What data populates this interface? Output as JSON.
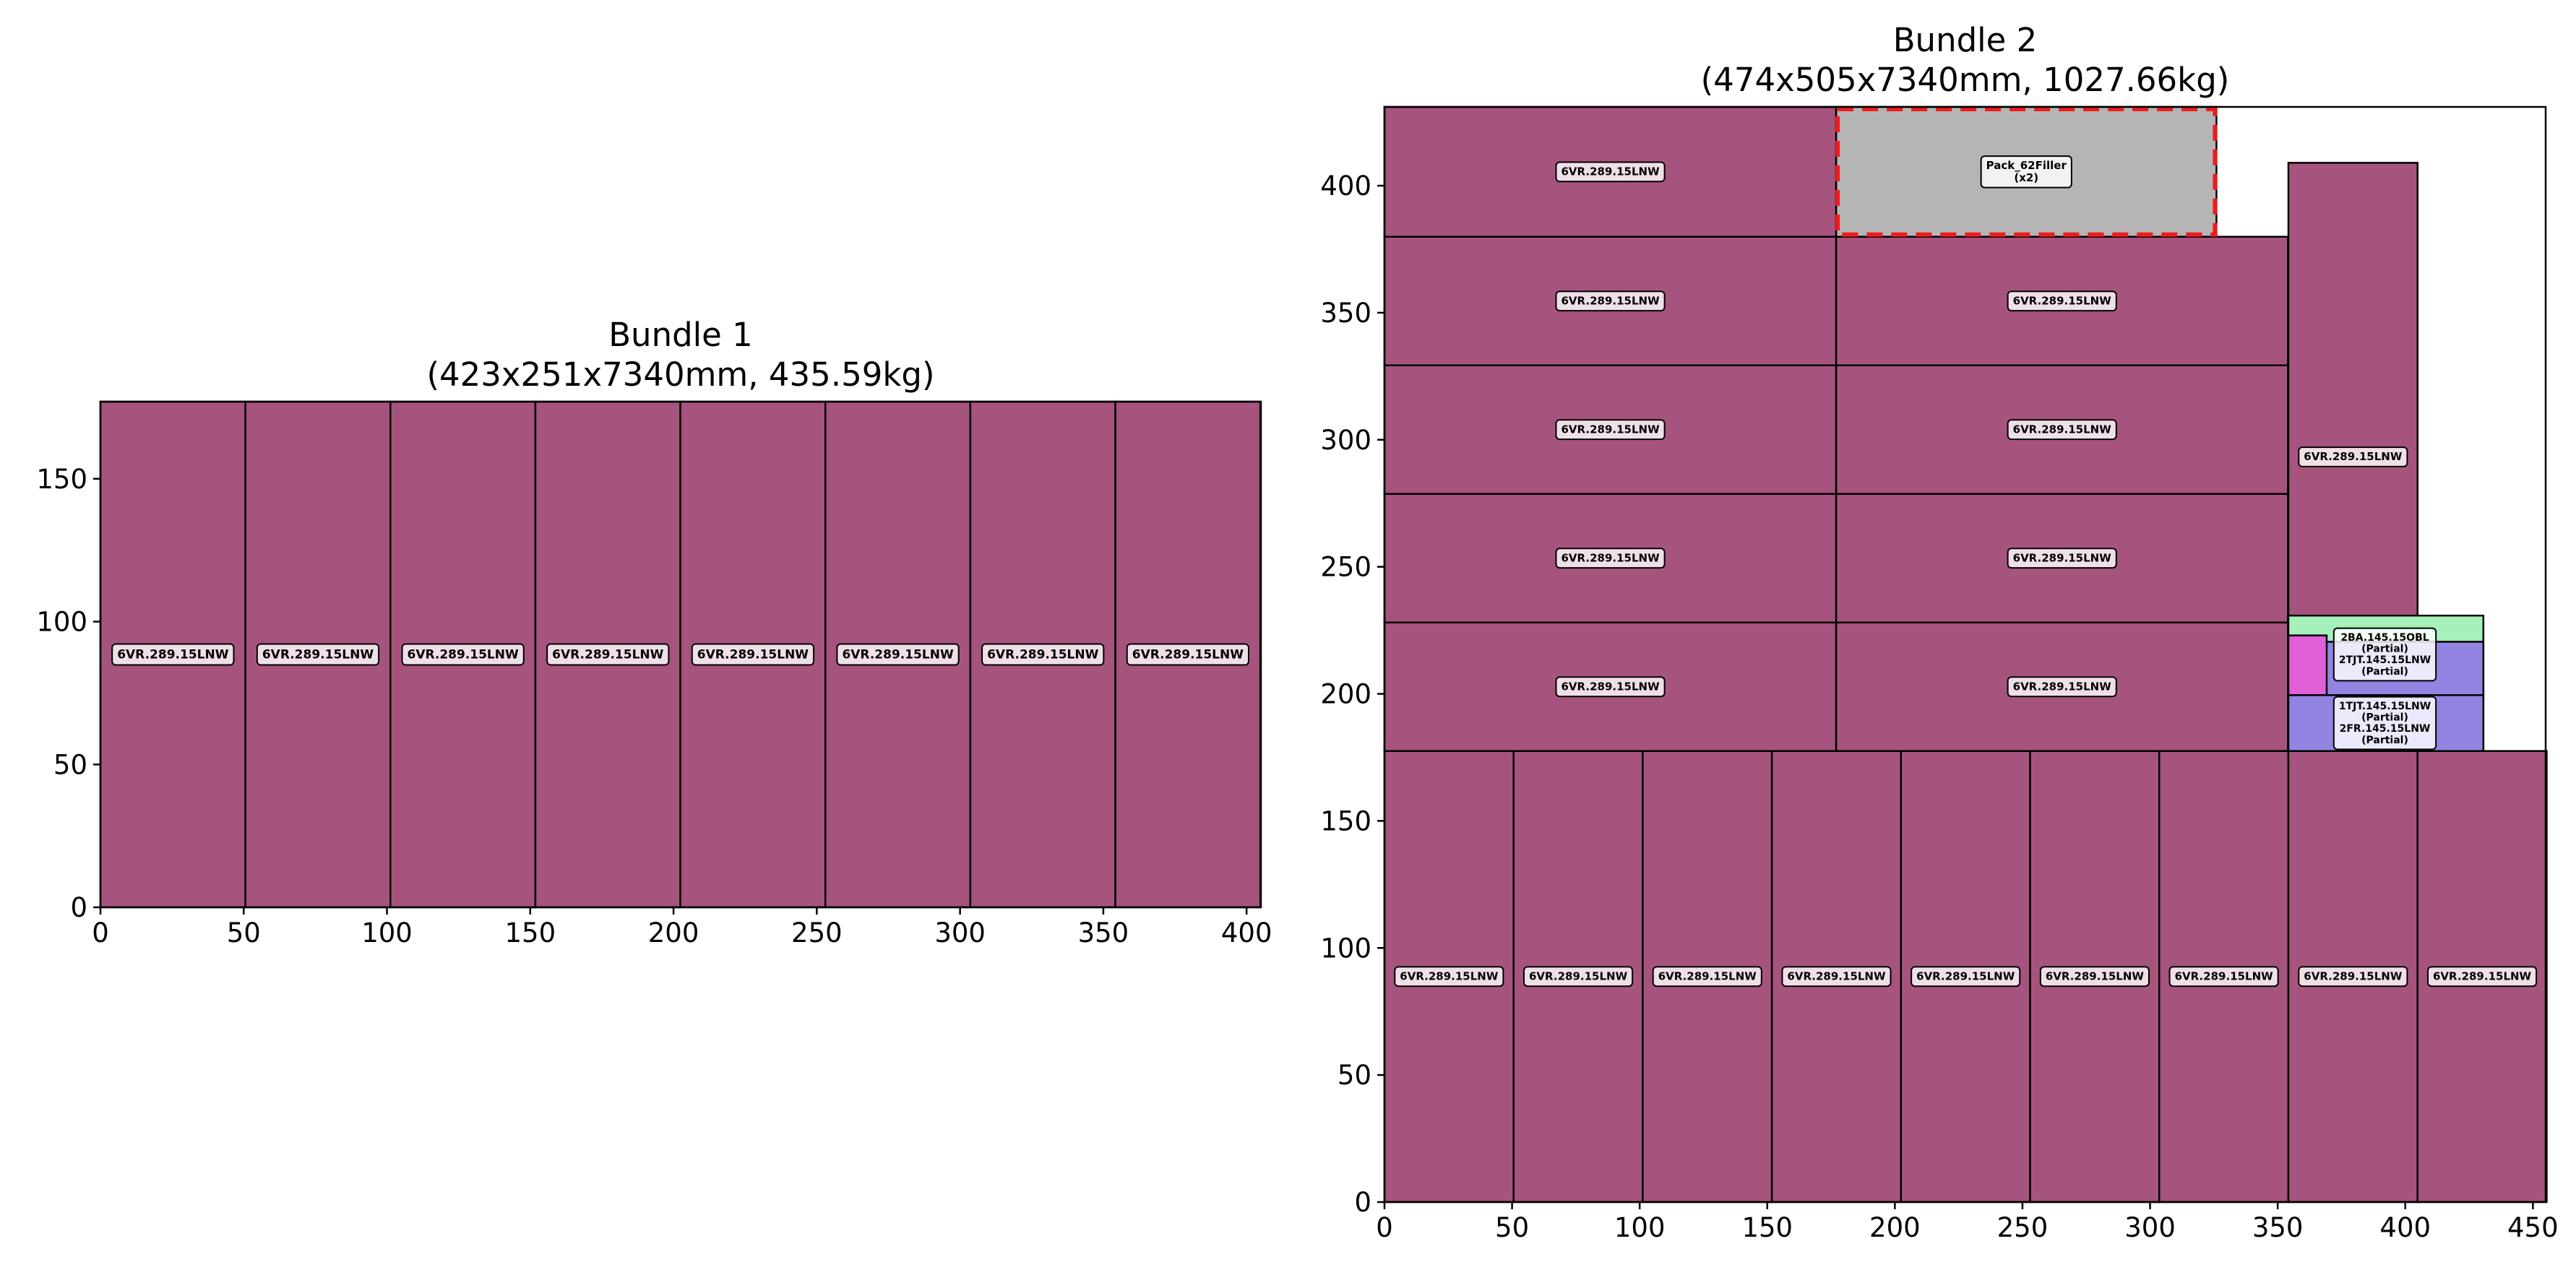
{
  "chart_data": [
    {
      "type": "packing-layout",
      "title": "Bundle 1\n(423x251x7340mm, 435.59kg)",
      "xlim": [
        0,
        405
      ],
      "ylim": [
        0,
        177
      ],
      "xticks": [
        0,
        50,
        100,
        150,
        200,
        250,
        300,
        350,
        400
      ],
      "yticks": [
        0,
        50,
        100,
        150
      ],
      "items": [
        {
          "x": 0,
          "y": 0,
          "w": 50.6,
          "h": 177,
          "label": [
            "6VR.289.15LNW"
          ],
          "color": "#a6547e"
        },
        {
          "x": 50.6,
          "y": 0,
          "w": 50.6,
          "h": 177,
          "label": [
            "6VR.289.15LNW"
          ],
          "color": "#a6547e"
        },
        {
          "x": 101.2,
          "y": 0,
          "w": 50.6,
          "h": 177,
          "label": [
            "6VR.289.15LNW"
          ],
          "color": "#a6547e"
        },
        {
          "x": 151.8,
          "y": 0,
          "w": 50.6,
          "h": 177,
          "label": [
            "6VR.289.15LNW"
          ],
          "color": "#a6547e"
        },
        {
          "x": 202.4,
          "y": 0,
          "w": 50.6,
          "h": 177,
          "label": [
            "6VR.289.15LNW"
          ],
          "color": "#a6547e"
        },
        {
          "x": 253.0,
          "y": 0,
          "w": 50.6,
          "h": 177,
          "label": [
            "6VR.289.15LNW"
          ],
          "color": "#a6547e"
        },
        {
          "x": 303.6,
          "y": 0,
          "w": 50.6,
          "h": 177,
          "label": [
            "6VR.289.15LNW"
          ],
          "color": "#a6547e"
        },
        {
          "x": 354.2,
          "y": 0,
          "w": 50.6,
          "h": 177,
          "label": [
            "6VR.289.15LNW"
          ],
          "color": "#a6547e"
        }
      ]
    },
    {
      "type": "packing-layout",
      "title": "Bundle 2\n(474x505x7340mm, 1027.66kg)",
      "xlim": [
        0,
        455
      ],
      "ylim": [
        0,
        431
      ],
      "xticks": [
        0,
        50,
        100,
        150,
        200,
        250,
        300,
        350,
        400,
        450
      ],
      "yticks": [
        0,
        50,
        100,
        150,
        200,
        250,
        300,
        350,
        400
      ],
      "items": [
        {
          "x": 0,
          "y": 0,
          "w": 50.6,
          "h": 177.5,
          "label": [
            "6VR.289.15LNW"
          ],
          "color": "#a6547e"
        },
        {
          "x": 50.6,
          "y": 0,
          "w": 50.6,
          "h": 177.5,
          "label": [
            "6VR.289.15LNW"
          ],
          "color": "#a6547e"
        },
        {
          "x": 101.2,
          "y": 0,
          "w": 50.6,
          "h": 177.5,
          "label": [
            "6VR.289.15LNW"
          ],
          "color": "#a6547e"
        },
        {
          "x": 151.8,
          "y": 0,
          "w": 50.6,
          "h": 177.5,
          "label": [
            "6VR.289.15LNW"
          ],
          "color": "#a6547e"
        },
        {
          "x": 202.4,
          "y": 0,
          "w": 50.6,
          "h": 177.5,
          "label": [
            "6VR.289.15LNW"
          ],
          "color": "#a6547e"
        },
        {
          "x": 253.0,
          "y": 0,
          "w": 50.6,
          "h": 177.5,
          "label": [
            "6VR.289.15LNW"
          ],
          "color": "#a6547e"
        },
        {
          "x": 303.6,
          "y": 0,
          "w": 50.6,
          "h": 177.5,
          "label": [
            "6VR.289.15LNW"
          ],
          "color": "#a6547e"
        },
        {
          "x": 354.2,
          "y": 0,
          "w": 50.6,
          "h": 177.5,
          "label": [
            "6VR.289.15LNW"
          ],
          "color": "#a6547e"
        },
        {
          "x": 404.8,
          "y": 0,
          "w": 50.6,
          "h": 177.5,
          "label": [
            "6VR.289.15LNW"
          ],
          "color": "#a6547e"
        },
        {
          "x": 0,
          "y": 177.5,
          "w": 177,
          "h": 50.6,
          "label": [
            "6VR.289.15LNW"
          ],
          "color": "#a6547e"
        },
        {
          "x": 177,
          "y": 177.5,
          "w": 177,
          "h": 50.6,
          "label": [
            "6VR.289.15LNW"
          ],
          "color": "#a6547e"
        },
        {
          "x": 0,
          "y": 228.1,
          "w": 177,
          "h": 50.6,
          "label": [
            "6VR.289.15LNW"
          ],
          "color": "#a6547e"
        },
        {
          "x": 177,
          "y": 228.1,
          "w": 177,
          "h": 50.6,
          "label": [
            "6VR.289.15LNW"
          ],
          "color": "#a6547e"
        },
        {
          "x": 0,
          "y": 278.7,
          "w": 177,
          "h": 50.6,
          "label": [
            "6VR.289.15LNW"
          ],
          "color": "#a6547e"
        },
        {
          "x": 177,
          "y": 278.7,
          "w": 177,
          "h": 50.6,
          "label": [
            "6VR.289.15LNW"
          ],
          "color": "#a6547e"
        },
        {
          "x": 0,
          "y": 329.3,
          "w": 177,
          "h": 50.6,
          "label": [
            "6VR.289.15LNW"
          ],
          "color": "#a6547e"
        },
        {
          "x": 177,
          "y": 329.3,
          "w": 177,
          "h": 50.6,
          "label": [
            "6VR.289.15LNW"
          ],
          "color": "#a6547e"
        },
        {
          "x": 0,
          "y": 379.9,
          "w": 177,
          "h": 51.1,
          "label": [
            "6VR.289.15LNW"
          ],
          "color": "#a6547e"
        },
        {
          "x": 177,
          "y": 379.9,
          "w": 149,
          "h": 51.1,
          "label": [
            "Pack_62Filler",
            "(x2)"
          ],
          "color": "#b5b5b5",
          "filler": true
        },
        {
          "x": 354.2,
          "y": 177.5,
          "w": 50.6,
          "h": 231.5,
          "label": [
            "6VR.289.15LNW"
          ],
          "color": "#a6547e"
        },
        {
          "x": 354.2,
          "y": 177.5,
          "w": 76.4,
          "h": 53.3,
          "label": [],
          "color": "#a6f0bb"
        },
        {
          "x": 354.2,
          "y": 199.5,
          "w": 76.4,
          "h": 21,
          "label": [],
          "color": "#9384e2"
        },
        {
          "x": 354.2,
          "y": 177.5,
          "w": 76.4,
          "h": 22,
          "label": [],
          "color": "#9384e2"
        },
        {
          "x": 354.2,
          "y": 199.5,
          "w": 15,
          "h": 23.5,
          "label": [],
          "color": "#e160d8"
        }
      ],
      "label_groups": [
        {
          "x": 392,
          "y": 215.5,
          "lines": [
            "2BA.145.15OBL",
            "(Partial)",
            "2TJT.145.15LNW",
            "(Partial)"
          ]
        },
        {
          "x": 392,
          "y": 188.5,
          "lines": [
            "1TJT.145.15LNW",
            "(Partial)",
            "2FR.145.15LNW",
            "(Partial)"
          ]
        }
      ]
    }
  ]
}
